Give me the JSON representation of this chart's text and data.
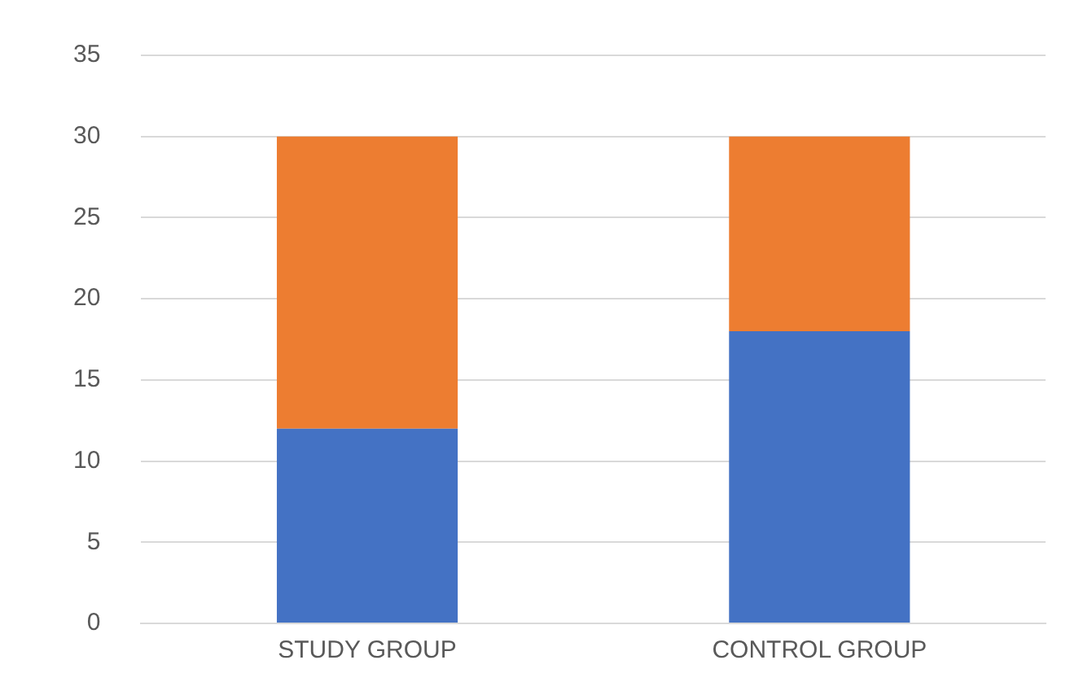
{
  "chart_data": {
    "type": "bar",
    "stacked": true,
    "categories": [
      "STUDY GROUP",
      "CONTROL GROUP"
    ],
    "series": [
      {
        "color": "#4472c4",
        "values": [
          12,
          18
        ]
      },
      {
        "color": "#ed7d31",
        "values": [
          18,
          12
        ]
      }
    ],
    "ylim": [
      0,
      35
    ],
    "yticks": [
      0,
      5,
      10,
      15,
      20,
      25,
      30,
      35
    ],
    "grid": "y"
  }
}
